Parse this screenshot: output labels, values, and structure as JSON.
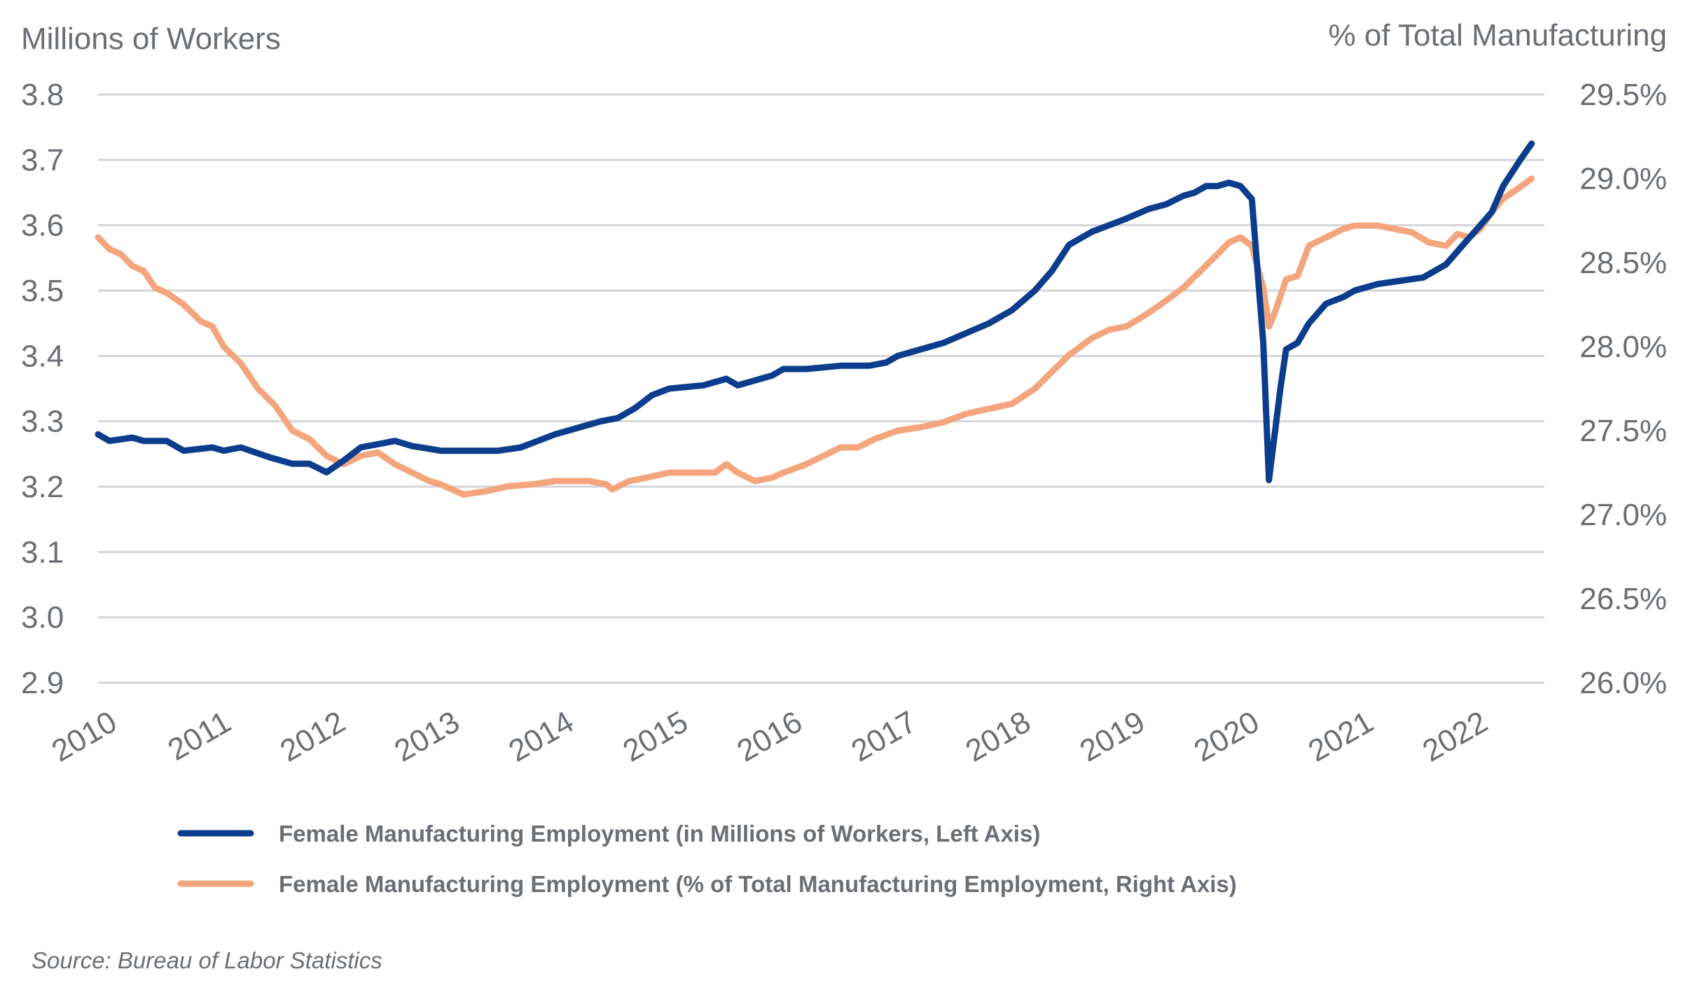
{
  "chart_data": {
    "type": "line",
    "left_axis_title": "Millions of Workers",
    "right_axis_title": "% of Total Manufacturing",
    "left_ylim": [
      2.9,
      3.8
    ],
    "left_ticks": [
      2.9,
      3.0,
      3.1,
      3.2,
      3.3,
      3.4,
      3.5,
      3.6,
      3.7,
      3.8
    ],
    "left_tick_labels": [
      "2.9",
      "3.0",
      "3.1",
      "3.2",
      "3.3",
      "3.4",
      "3.5",
      "3.6",
      "3.7",
      "3.8"
    ],
    "right_ylim": [
      26.0,
      29.5
    ],
    "right_ticks": [
      26.0,
      26.5,
      27.0,
      27.5,
      28.0,
      28.5,
      29.0,
      29.5
    ],
    "right_tick_labels": [
      "26.0%",
      "26.5%",
      "27.0%",
      "27.5%",
      "28.0%",
      "28.5%",
      "29.0%",
      "29.5%"
    ],
    "xlim": [
      2010.0,
      2022.6
    ],
    "x_ticks": [
      2010,
      2011,
      2012,
      2013,
      2014,
      2015,
      2016,
      2017,
      2018,
      2019,
      2020,
      2021,
      2022
    ],
    "x_tick_labels": [
      "2010",
      "2011",
      "2012",
      "2013",
      "2014",
      "2015",
      "2016",
      "2017",
      "2018",
      "2019",
      "2020",
      "2021",
      "2022"
    ],
    "grid": true,
    "legend_placement": "bottom",
    "series": [
      {
        "name": "Female Manufacturing Employment (in Millions of Workers, Left Axis)",
        "axis": "left",
        "color": "#0b3d8c",
        "x": [
          2010.0,
          2010.1,
          2010.3,
          2010.4,
          2010.6,
          2010.75,
          2011.0,
          2011.1,
          2011.25,
          2011.5,
          2011.7,
          2011.85,
          2012.0,
          2012.15,
          2012.3,
          2012.6,
          2012.75,
          2012.9,
          2013.0,
          2013.2,
          2013.5,
          2013.7,
          2013.85,
          2014.0,
          2014.2,
          2014.4,
          2014.55,
          2014.7,
          2014.85,
          2015.0,
          2015.3,
          2015.5,
          2015.6,
          2015.9,
          2016.0,
          2016.2,
          2016.5,
          2016.75,
          2016.9,
          2017.0,
          2017.2,
          2017.4,
          2017.6,
          2017.8,
          2018.0,
          2018.2,
          2018.35,
          2018.5,
          2018.7,
          2018.85,
          2019.0,
          2019.2,
          2019.35,
          2019.5,
          2019.6,
          2019.7,
          2019.8,
          2019.9,
          2020.0,
          2020.1,
          2020.2,
          2020.25,
          2020.3,
          2020.35,
          2020.4,
          2020.5,
          2020.6,
          2020.75,
          2020.9,
          2021.0,
          2021.2,
          2021.4,
          2021.6,
          2021.8,
          2021.9,
          2022.0,
          2022.1,
          2022.2,
          2022.3,
          2022.45,
          2022.55
        ],
        "values": [
          3.28,
          3.27,
          3.275,
          3.27,
          3.27,
          3.255,
          3.26,
          3.255,
          3.26,
          3.245,
          3.235,
          3.235,
          3.222,
          3.24,
          3.26,
          3.27,
          3.262,
          3.258,
          3.255,
          3.255,
          3.255,
          3.26,
          3.27,
          3.28,
          3.29,
          3.3,
          3.305,
          3.32,
          3.34,
          3.35,
          3.355,
          3.365,
          3.355,
          3.37,
          3.38,
          3.38,
          3.385,
          3.385,
          3.39,
          3.4,
          3.41,
          3.42,
          3.435,
          3.45,
          3.47,
          3.5,
          3.53,
          3.57,
          3.59,
          3.6,
          3.61,
          3.625,
          3.632,
          3.645,
          3.65,
          3.66,
          3.66,
          3.665,
          3.66,
          3.64,
          3.42,
          3.21,
          3.28,
          3.35,
          3.41,
          3.42,
          3.45,
          3.48,
          3.49,
          3.5,
          3.51,
          3.515,
          3.52,
          3.54,
          3.56,
          3.58,
          3.6,
          3.62,
          3.66,
          3.7,
          3.725
        ]
      },
      {
        "name": "Female Manufacturing Employment (% of Total Manufacturing Employment, Right Axis)",
        "axis": "right",
        "color": "#f4a57e",
        "x": [
          2010.0,
          2010.1,
          2010.2,
          2010.3,
          2010.4,
          2010.5,
          2010.6,
          2010.75,
          2010.9,
          2011.0,
          2011.1,
          2011.25,
          2011.4,
          2011.55,
          2011.7,
          2011.85,
          2012.0,
          2012.15,
          2012.3,
          2012.45,
          2012.6,
          2012.75,
          2012.9,
          2013.0,
          2013.2,
          2013.4,
          2013.6,
          2013.8,
          2014.0,
          2014.15,
          2014.3,
          2014.45,
          2014.5,
          2014.65,
          2014.8,
          2015.0,
          2015.2,
          2015.4,
          2015.5,
          2015.6,
          2015.75,
          2015.9,
          2016.0,
          2016.2,
          2016.35,
          2016.5,
          2016.65,
          2016.8,
          2017.0,
          2017.2,
          2017.4,
          2017.6,
          2017.8,
          2018.0,
          2018.2,
          2018.35,
          2018.5,
          2018.7,
          2018.85,
          2019.0,
          2019.15,
          2019.3,
          2019.5,
          2019.65,
          2019.8,
          2019.9,
          2020.0,
          2020.1,
          2020.2,
          2020.25,
          2020.3,
          2020.4,
          2020.5,
          2020.6,
          2020.75,
          2020.9,
          2021.0,
          2021.2,
          2021.35,
          2021.5,
          2021.65,
          2021.8,
          2021.9,
          2022.0,
          2022.1,
          2022.2,
          2022.3,
          2022.45,
          2022.55
        ],
        "values": [
          28.65,
          28.58,
          28.55,
          28.48,
          28.45,
          28.35,
          28.32,
          28.25,
          28.15,
          28.12,
          28.0,
          27.9,
          27.75,
          27.65,
          27.5,
          27.45,
          27.35,
          27.3,
          27.35,
          27.37,
          27.3,
          27.25,
          27.2,
          27.18,
          27.12,
          27.14,
          27.17,
          27.18,
          27.2,
          27.2,
          27.2,
          27.18,
          27.15,
          27.2,
          27.22,
          27.25,
          27.25,
          27.25,
          27.3,
          27.25,
          27.2,
          27.22,
          27.25,
          27.3,
          27.35,
          27.4,
          27.4,
          27.45,
          27.5,
          27.52,
          27.55,
          27.6,
          27.63,
          27.66,
          27.75,
          27.85,
          27.95,
          28.05,
          28.1,
          28.12,
          28.18,
          28.25,
          28.35,
          28.45,
          28.55,
          28.62,
          28.65,
          28.6,
          28.35,
          28.12,
          28.2,
          28.4,
          28.42,
          28.6,
          28.65,
          28.7,
          28.72,
          28.72,
          28.7,
          28.68,
          28.62,
          28.6,
          28.67,
          28.65,
          28.7,
          28.8,
          28.88,
          28.95,
          29.0
        ]
      }
    ],
    "source": "Source: Bureau of Labor Statistics"
  }
}
